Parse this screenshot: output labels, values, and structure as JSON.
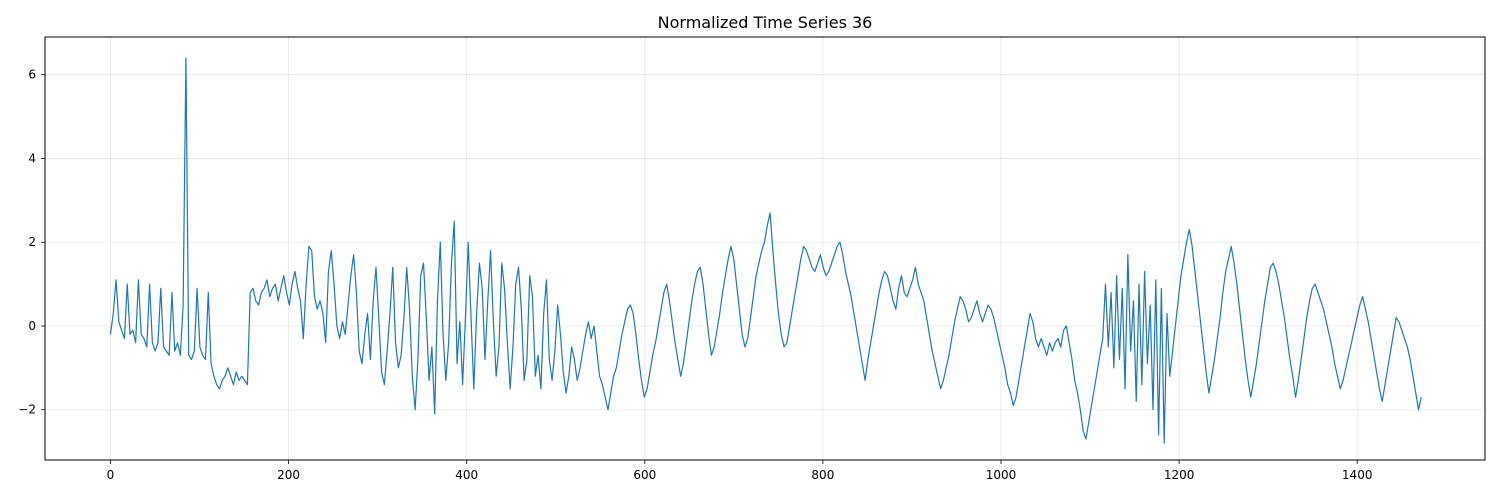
{
  "chart_data": {
    "type": "line",
    "title": "Normalized Time Series 36",
    "xlabel": "",
    "ylabel": "",
    "xlim": [
      -73.5,
      1543.5
    ],
    "ylim": [
      -3.2,
      6.9
    ],
    "x_ticks": [
      0,
      200,
      400,
      600,
      800,
      1000,
      1200,
      1400
    ],
    "y_ticks": [
      -2,
      0,
      2,
      4,
      6
    ],
    "x_tick_labels": [
      "0",
      "200",
      "400",
      "600",
      "800",
      "1000",
      "1200",
      "1400"
    ],
    "y_tick_labels": [
      "−2",
      "0",
      "2",
      "4",
      "6"
    ],
    "grid": true,
    "legend": "none",
    "line_color": "#1f77b4",
    "series": [
      {
        "x_start": 0,
        "x_step": 1,
        "values": [
          -0.2,
          0.3,
          1.1,
          0.1,
          -0.1,
          -0.3,
          1.0,
          -0.2,
          -0.1,
          -0.4,
          1.1,
          -0.2,
          -0.3,
          -0.5,
          1.0,
          -0.4,
          -0.6,
          -0.4,
          0.9,
          -0.5,
          -0.6,
          -0.7,
          0.8,
          -0.6,
          -0.4,
          -0.7,
          0.5,
          6.4,
          -0.7,
          -0.8,
          -0.6,
          0.9,
          -0.5,
          -0.7,
          -0.8,
          0.8,
          -0.9,
          -1.2,
          -1.4,
          -1.5,
          -1.3,
          -1.2,
          -1.0,
          -1.2,
          -1.4,
          -1.1,
          -1.3,
          -1.2,
          -1.3,
          -1.4,
          0.8,
          0.9,
          0.6,
          0.5,
          0.8,
          0.9,
          1.1,
          0.7,
          0.9,
          1.0,
          0.6,
          0.9,
          1.2,
          0.8,
          0.5,
          1.0,
          1.3,
          0.9,
          0.6,
          -0.3,
          1.0,
          1.9,
          1.8,
          0.7,
          0.4,
          0.6,
          0.3,
          -0.4,
          1.3,
          1.8,
          1.0,
          0.0,
          -0.3,
          0.1,
          -0.2,
          0.5,
          1.2,
          1.7,
          0.8,
          -0.6,
          -0.9,
          -0.2,
          0.3,
          -0.8,
          0.6,
          1.4,
          0.2,
          -1.1,
          -1.4,
          -0.6,
          0.3,
          1.4,
          -0.4,
          -1.0,
          -0.7,
          0.2,
          1.4,
          0.4,
          -1.2,
          -2.0,
          -0.8,
          1.2,
          1.5,
          0.2,
          -1.3,
          -0.5,
          -2.1,
          0.6,
          2.0,
          -0.2,
          -1.3,
          -0.4,
          1.5,
          2.5,
          -0.9,
          0.1,
          -1.4,
          0.2,
          2.0,
          0.2,
          -1.5,
          0.3,
          1.5,
          0.9,
          -0.8,
          0.6,
          1.8,
          0.1,
          -1.2,
          -0.5,
          1.5,
          0.9,
          -0.4,
          -1.5,
          -0.5,
          1.0,
          1.4,
          0.4,
          -1.3,
          -0.8,
          1.2,
          0.7,
          -1.2,
          -0.7,
          -1.5,
          0.3,
          1.1,
          -0.8,
          -1.3,
          -0.6,
          0.5,
          -0.2,
          -1.1,
          -1.6,
          -1.2,
          -0.5,
          -0.8,
          -1.3,
          -1.0,
          -0.6,
          -0.2,
          0.1,
          -0.3,
          0.0,
          -0.6,
          -1.2,
          -1.4,
          -1.7,
          -2.0,
          -1.6,
          -1.2,
          -1.0,
          -0.6,
          -0.2,
          0.1,
          0.4,
          0.5,
          0.3,
          -0.2,
          -0.8,
          -1.3,
          -1.7,
          -1.5,
          -1.1,
          -0.7,
          -0.4,
          0.0,
          0.4,
          0.8,
          1.0,
          0.6,
          0.1,
          -0.4,
          -0.8,
          -1.2,
          -0.9,
          -0.4,
          0.1,
          0.6,
          1.0,
          1.3,
          1.4,
          1.0,
          0.4,
          -0.2,
          -0.7,
          -0.5,
          -0.1,
          0.3,
          0.8,
          1.2,
          1.6,
          1.9,
          1.6,
          1.0,
          0.4,
          -0.2,
          -0.5,
          -0.3,
          0.2,
          0.7,
          1.2,
          1.5,
          1.8,
          2.0,
          2.4,
          2.7,
          1.8,
          1.0,
          0.3,
          -0.2,
          -0.5,
          -0.4,
          0.0,
          0.4,
          0.8,
          1.2,
          1.6,
          1.9,
          1.8,
          1.6,
          1.4,
          1.3,
          1.5,
          1.7,
          1.4,
          1.2,
          1.3,
          1.5,
          1.7,
          1.9,
          2.0,
          1.7,
          1.3,
          1.0,
          0.7,
          0.3,
          -0.1,
          -0.5,
          -0.9,
          -1.3,
          -0.8,
          -0.4,
          0.0,
          0.4,
          0.8,
          1.1,
          1.3,
          1.2,
          0.9,
          0.6,
          0.4,
          0.9,
          1.2,
          0.8,
          0.7,
          0.9,
          1.1,
          1.4,
          1.0,
          0.8,
          0.6,
          0.2,
          -0.2,
          -0.6,
          -0.9,
          -1.2,
          -1.5,
          -1.3,
          -1.0,
          -0.7,
          -0.3,
          0.1,
          0.4,
          0.7,
          0.6,
          0.4,
          0.1,
          0.2,
          0.4,
          0.6,
          0.3,
          0.1,
          0.3,
          0.5,
          0.4,
          0.2,
          -0.1,
          -0.4,
          -0.7,
          -1.0,
          -1.4,
          -1.6,
          -1.9,
          -1.7,
          -1.3,
          -0.9,
          -0.5,
          -0.1,
          0.3,
          0.1,
          -0.3,
          -0.5,
          -0.3,
          -0.5,
          -0.7,
          -0.4,
          -0.6,
          -0.4,
          -0.3,
          -0.5,
          -0.1,
          0.0,
          -0.4,
          -0.8,
          -1.3,
          -1.6,
          -2.0,
          -2.5,
          -2.7,
          -2.3,
          -1.9,
          -1.5,
          -1.1,
          -0.7,
          -0.3,
          1.0,
          -0.5,
          0.8,
          -1.0,
          1.2,
          -0.8,
          0.9,
          -1.5,
          1.7,
          -0.6,
          0.6,
          -1.8,
          1.0,
          -1.4,
          1.3,
          -0.9,
          0.5,
          -2.0,
          1.1,
          -2.6,
          0.9,
          -2.8,
          0.3,
          -1.2,
          -0.6,
          0.0,
          0.6,
          1.2,
          1.6,
          2.0,
          2.3,
          1.9,
          1.3,
          0.7,
          0.1,
          -0.5,
          -1.1,
          -1.6,
          -1.2,
          -0.8,
          -0.3,
          0.2,
          0.8,
          1.3,
          1.6,
          1.9,
          1.5,
          1.0,
          0.4,
          -0.2,
          -0.8,
          -1.3,
          -1.7,
          -1.3,
          -0.9,
          -0.4,
          0.1,
          0.6,
          1.0,
          1.4,
          1.5,
          1.3,
          1.0,
          0.6,
          0.2,
          -0.3,
          -0.8,
          -1.2,
          -1.7,
          -1.3,
          -0.8,
          -0.3,
          0.2,
          0.6,
          0.9,
          1.0,
          0.8,
          0.6,
          0.4,
          0.1,
          -0.2,
          -0.5,
          -0.9,
          -1.2,
          -1.5,
          -1.3,
          -1.0,
          -0.7,
          -0.4,
          -0.1,
          0.2,
          0.5,
          0.7,
          0.4,
          0.1,
          -0.3,
          -0.7,
          -1.1,
          -1.5,
          -1.8,
          -1.4,
          -1.0,
          -0.6,
          -0.2,
          0.2,
          0.1,
          -0.1,
          -0.3,
          -0.5,
          -0.8,
          -1.2,
          -1.6,
          -2.0,
          -1.7
        ]
      }
    ]
  }
}
